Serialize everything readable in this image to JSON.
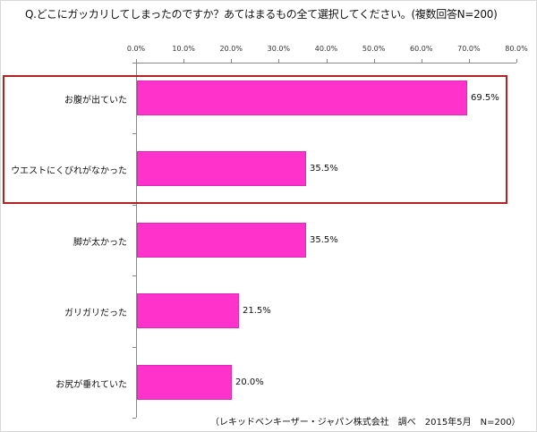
{
  "title": "Q.どこにガッカリしてしまったのですか？あてはまるもの全て選択してください。(複数回答N=200)",
  "source": "（レキッドベンキーザー・ジャパン株式会社　調べ　2015年5月　N=200）",
  "colors": {
    "bar": "#ff33cc",
    "highlight_box": "#b22222",
    "axis": "#888888"
  },
  "chart_data": {
    "type": "bar",
    "orientation": "horizontal",
    "title": "Q.どこにガッカリしてしまったのですか？あてはまるもの全て選択してください。(複数回答N=200)",
    "categories": [
      "お腹が出ていた",
      "ウエストにくびれがなかった",
      "脚が太かった",
      "ガリガリだった",
      "お尻が垂れていた"
    ],
    "values": [
      69.5,
      35.5,
      35.5,
      21.5,
      20.0
    ],
    "value_labels": [
      "69.5%",
      "35.5%",
      "35.5%",
      "21.5%",
      "20.0%"
    ],
    "xlabel": "",
    "ylabel": "",
    "xlim": [
      0,
      80
    ],
    "x_ticks": [
      "0.0%",
      "10.0%",
      "20.0%",
      "30.0%",
      "40.0%",
      "50.0%",
      "60.0%",
      "70.0%",
      "80.0%"
    ],
    "axis_position": "top",
    "grid": false,
    "legend": "none",
    "annotations": [
      "red box highlighting the first two categories"
    ]
  }
}
